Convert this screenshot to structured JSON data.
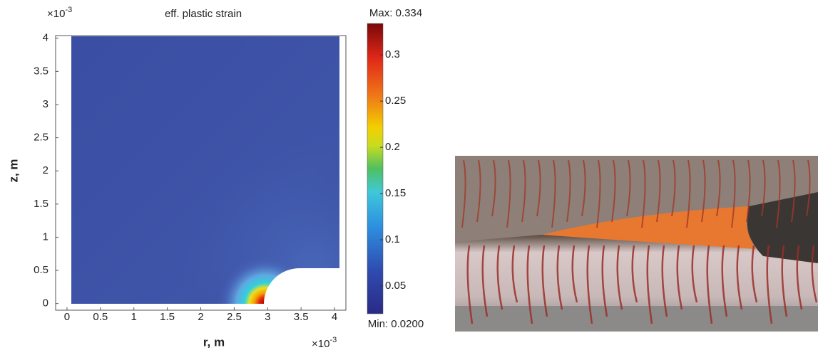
{
  "chart_data": {
    "type": "contour",
    "title": "eff. plastic strain",
    "x_label": "r, m",
    "y_label": "z, m",
    "x_multiplier": {
      "base": "×10",
      "exponent": "-3"
    },
    "y_multiplier": {
      "base": "×10",
      "exponent": "-3"
    },
    "xlim": [
      -0.17,
      4.17
    ],
    "xticks": [
      0,
      0.5,
      1,
      1.5,
      2,
      2.5,
      3,
      3.5,
      4
    ],
    "ylim": [
      -0.1,
      4.04
    ],
    "yticks": [
      0,
      0.5,
      1,
      1.5,
      2,
      2.5,
      3,
      3.5,
      4
    ],
    "colorbar": {
      "clim": [
        0.02,
        0.334
      ],
      "ticks": [
        0.05,
        0.1,
        0.15,
        0.2,
        0.25,
        0.3
      ],
      "max_label": "Max: 0.334",
      "min_label": "Min: 0.0200"
    }
  }
}
